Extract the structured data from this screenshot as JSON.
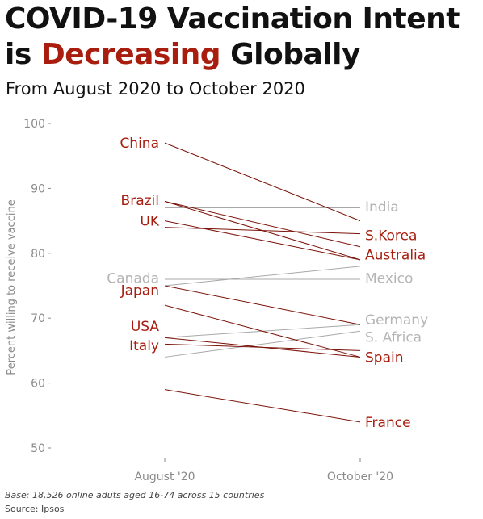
{
  "title_line1": "COVID-19 Vaccination Intent",
  "title_line2_pre": "is ",
  "title_line2_highlight": "Decreasing",
  "title_line2_post": " Globally",
  "subtitle": "From August 2020 to October 2020",
  "footnote_base": "Base: 18,526 online aduts aged 16-74 across 15 countries",
  "footnote_source": "Source: Ipsos",
  "colors": {
    "decrease": "#a81d0e",
    "neutral": "#b5b5b5",
    "axis": "#888888"
  },
  "chart_data": {
    "type": "line",
    "subtype": "slope",
    "title": "COVID-19 Vaccination Intent is Decreasing Globally",
    "subtitle": "From August 2020 to October 2020",
    "xlabel": "",
    "ylabel": "Percent willing to receive vaccine",
    "categories": [
      "August '20",
      "October '20"
    ],
    "ylim": [
      50,
      100
    ],
    "yticks": [
      50,
      60,
      70,
      80,
      90,
      100
    ],
    "grid": false,
    "series": [
      {
        "name": "China",
        "values": [
          97,
          85
        ],
        "highlight": true,
        "label_side": "left"
      },
      {
        "name": "Brazil",
        "values": [
          88,
          79
        ],
        "highlight": true,
        "label_side": "left"
      },
      {
        "name": "UK",
        "values": [
          85,
          79
        ],
        "highlight": true,
        "label_side": "left"
      },
      {
        "name": "India",
        "values": [
          87,
          87
        ],
        "highlight": false,
        "label_side": "right"
      },
      {
        "name": "S.Korea",
        "values": [
          84,
          83
        ],
        "highlight": true,
        "label_side": "right"
      },
      {
        "name": "Australia",
        "values": [
          88,
          81
        ],
        "highlight": true,
        "label_side": "right"
      },
      {
        "name": "Canada",
        "values": [
          76,
          76
        ],
        "highlight": false,
        "label_side": "left"
      },
      {
        "name": "Mexico",
        "values": [
          75,
          78
        ],
        "highlight": false,
        "label_side": "right"
      },
      {
        "name": "Japan",
        "values": [
          75,
          69
        ],
        "highlight": true,
        "label_side": "left"
      },
      {
        "name": "Germany",
        "values": [
          67,
          69
        ],
        "highlight": false,
        "label_side": "right"
      },
      {
        "name": "S. Africa",
        "values": [
          64,
          68
        ],
        "highlight": false,
        "label_side": "right"
      },
      {
        "name": "USA",
        "values": [
          67,
          64
        ],
        "highlight": true,
        "label_side": "left"
      },
      {
        "name": "Italy",
        "values": [
          66,
          65
        ],
        "highlight": true,
        "label_side": "left"
      },
      {
        "name": "Spain",
        "values": [
          72,
          64
        ],
        "highlight": true,
        "label_side": "right"
      },
      {
        "name": "France",
        "values": [
          59,
          54
        ],
        "highlight": true,
        "label_side": "right"
      }
    ],
    "direct_labels": [
      {
        "name": "China",
        "side": "left",
        "y": 97,
        "highlight": true
      },
      {
        "name": "Brazil",
        "side": "left",
        "y": 88.2,
        "highlight": true
      },
      {
        "name": "UK",
        "side": "left",
        "y": 85,
        "highlight": true
      },
      {
        "name": "Canada",
        "side": "left",
        "y": 76.2,
        "highlight": false
      },
      {
        "name": "Japan",
        "side": "left",
        "y": 74.3,
        "highlight": true
      },
      {
        "name": "USA",
        "side": "left",
        "y": 68.8,
        "highlight": true
      },
      {
        "name": "Italy",
        "side": "left",
        "y": 65.8,
        "highlight": true
      },
      {
        "name": "India",
        "side": "right",
        "y": 87.2,
        "highlight": false
      },
      {
        "name": "S.Korea",
        "side": "right",
        "y": 82.8,
        "highlight": true
      },
      {
        "name": "Australia",
        "side": "right",
        "y": 79.8,
        "highlight": true
      },
      {
        "name": "Mexico",
        "side": "right",
        "y": 76.2,
        "highlight": false
      },
      {
        "name": "Germany",
        "side": "right",
        "y": 69.8,
        "highlight": false
      },
      {
        "name": "S. Africa",
        "side": "right",
        "y": 67.1,
        "highlight": false
      },
      {
        "name": "Spain",
        "side": "right",
        "y": 64,
        "highlight": true
      },
      {
        "name": "France",
        "side": "right",
        "y": 54,
        "highlight": true
      }
    ]
  }
}
